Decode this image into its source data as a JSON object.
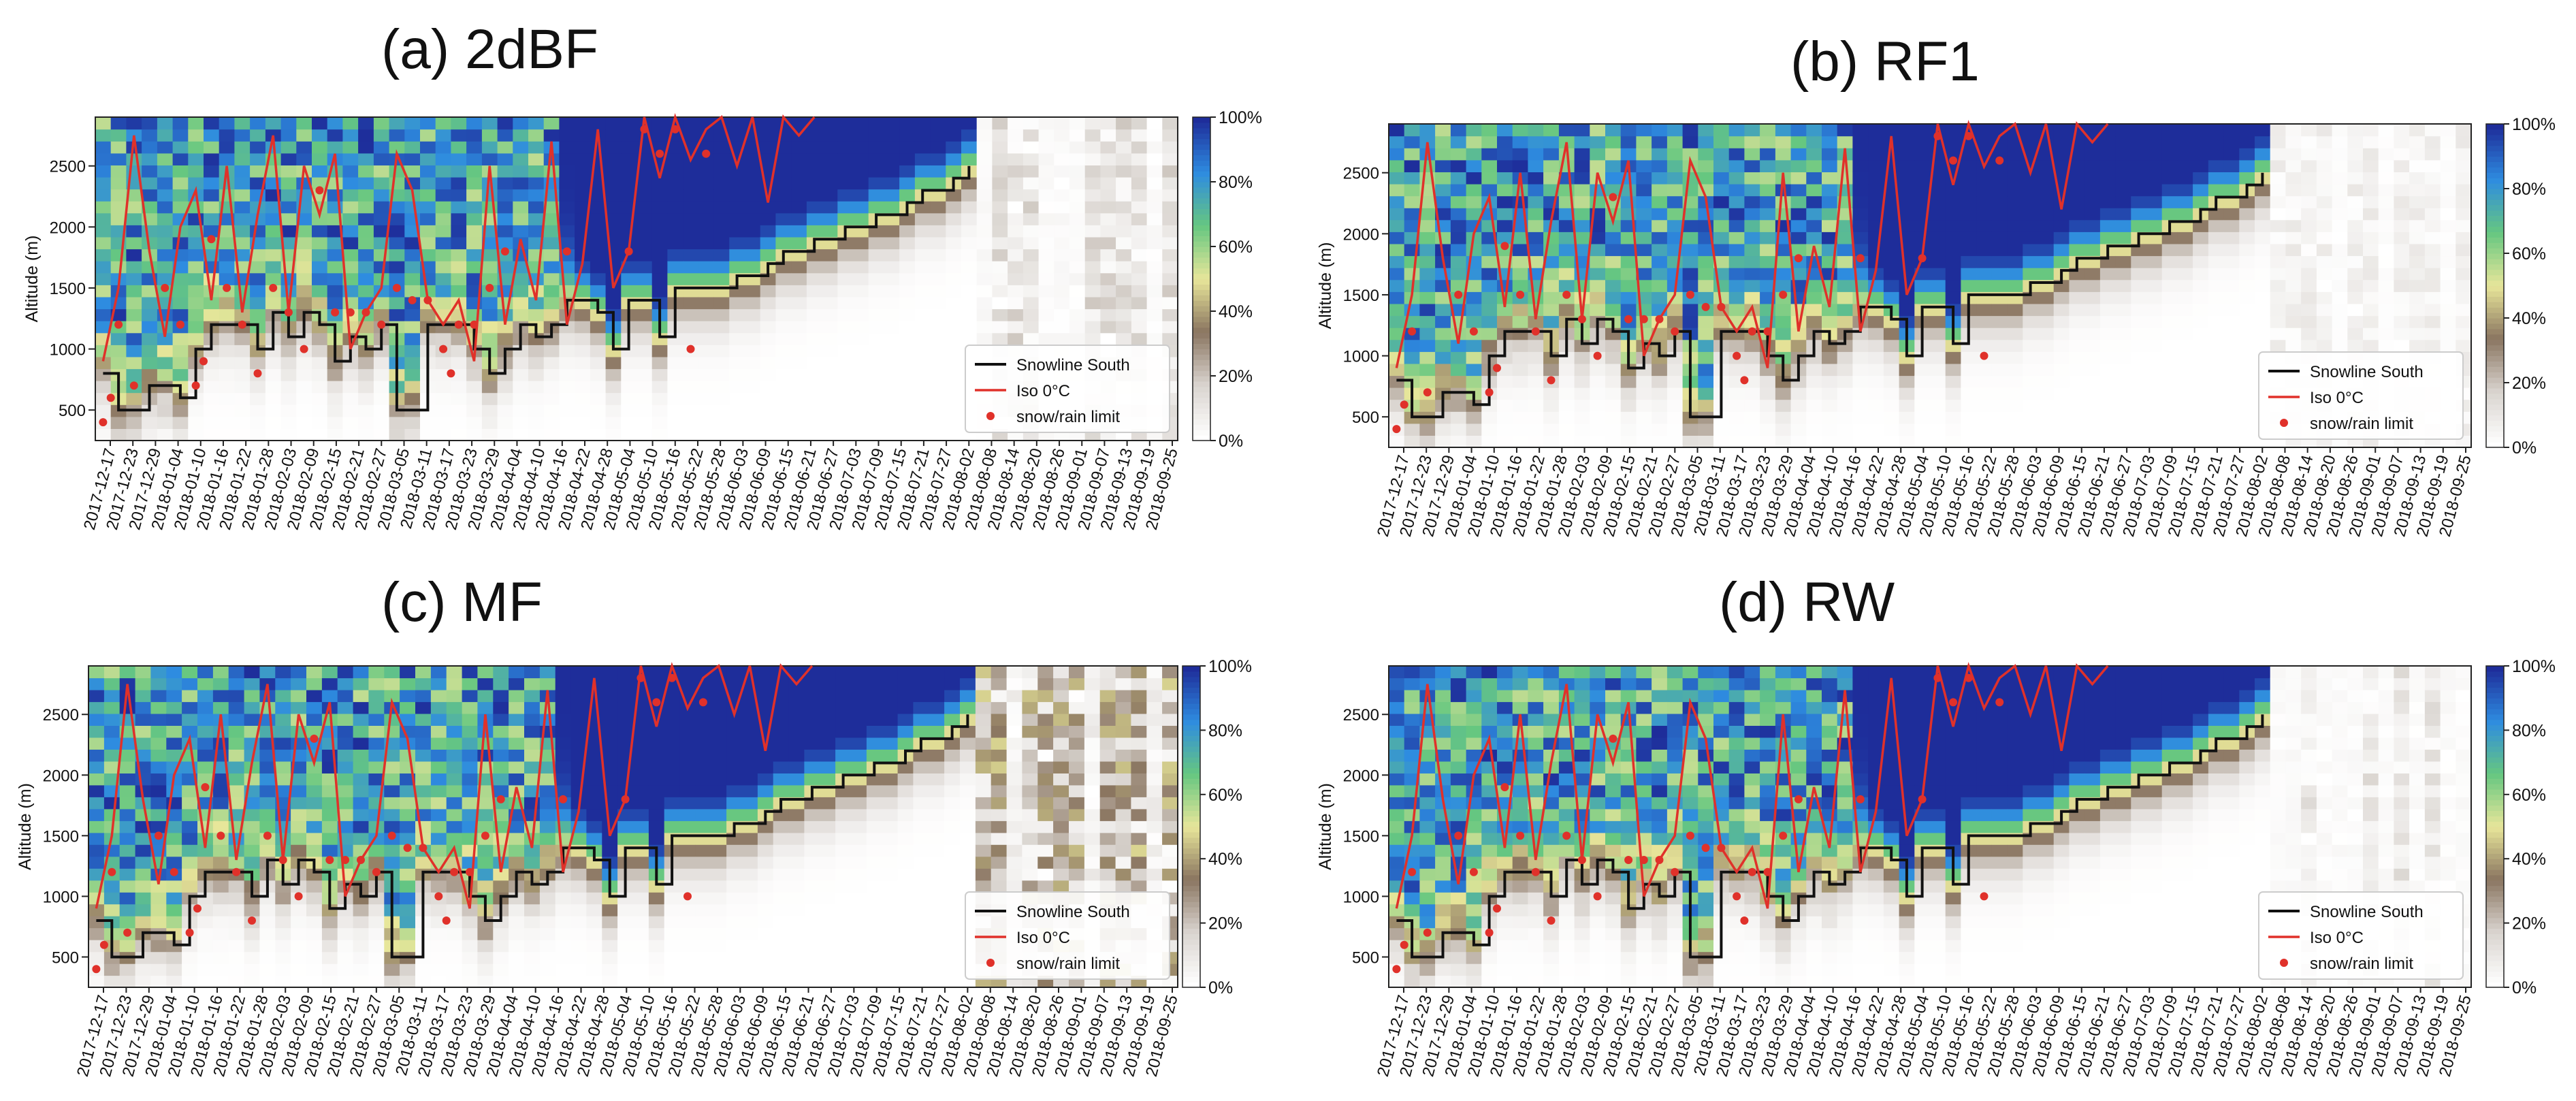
{
  "figure": {
    "colormap": [
      "#ffffff",
      "#d9d4cf",
      "#8a7560",
      "#e8e69a",
      "#66c780",
      "#2e8ce0",
      "#1e2d9a"
    ],
    "colors": {
      "snowline": "#111111",
      "iso": "#e0312a",
      "snowrain": "#e0312a"
    }
  },
  "chart_data": [
    {
      "type": "heatmap",
      "title": "(a)  2dBF",
      "ylabel": "Altitude (m)",
      "ylim": [
        250,
        2900
      ],
      "yticks": [
        500,
        1000,
        1500,
        2000,
        2500
      ],
      "xticks": [
        "2017-12-17",
        "2017-12-23",
        "2017-12-29",
        "2018-01-04",
        "2018-01-10",
        "2018-01-16",
        "2018-01-22",
        "2018-01-28",
        "2018-02-03",
        "2018-02-09",
        "2018-02-15",
        "2018-02-21",
        "2018-02-27",
        "2018-03-05",
        "2018-03-11",
        "2018-03-17",
        "2018-03-23",
        "2018-03-29",
        "2018-04-04",
        "2018-04-10",
        "2018-04-16",
        "2018-04-22",
        "2018-04-28",
        "2018-05-04",
        "2018-05-10",
        "2018-05-16",
        "2018-05-22",
        "2018-05-28",
        "2018-06-03",
        "2018-06-09",
        "2018-06-15",
        "2018-06-21",
        "2018-06-27",
        "2018-07-03",
        "2018-07-09",
        "2018-07-15",
        "2018-07-21",
        "2018-07-27",
        "2018-08-02",
        "2018-08-08",
        "2018-08-14",
        "2018-08-20",
        "2018-08-26",
        "2018-09-01",
        "2018-09-07",
        "2018-09-13",
        "2018-09-19",
        "2018-09-25"
      ],
      "colorbar": {
        "ticks": [
          "0%",
          "20%",
          "40%",
          "60%",
          "80%",
          "100%"
        ],
        "range": [
          0,
          100
        ]
      },
      "legend": {
        "position": "bottom-right",
        "entries": [
          "Snowline South",
          "Iso 0°C",
          "snow/rain limit"
        ]
      },
      "summer_background": 0.12
    },
    {
      "type": "heatmap",
      "title": "(b) RF1",
      "ylabel": "Altitude (m)",
      "ylim": [
        250,
        2900
      ],
      "yticks": [
        500,
        1000,
        1500,
        2000,
        2500
      ],
      "xticks": [
        "2017-12-17",
        "2017-12-23",
        "2017-12-29",
        "2018-01-04",
        "2018-01-10",
        "2018-01-16",
        "2018-01-22",
        "2018-01-28",
        "2018-02-03",
        "2018-02-09",
        "2018-02-15",
        "2018-02-21",
        "2018-02-27",
        "2018-03-05",
        "2018-03-11",
        "2018-03-17",
        "2018-03-23",
        "2018-03-29",
        "2018-04-04",
        "2018-04-10",
        "2018-04-16",
        "2018-04-22",
        "2018-04-28",
        "2018-05-04",
        "2018-05-10",
        "2018-05-16",
        "2018-05-22",
        "2018-05-28",
        "2018-06-03",
        "2018-06-09",
        "2018-06-15",
        "2018-06-21",
        "2018-06-27",
        "2018-07-03",
        "2018-07-09",
        "2018-07-15",
        "2018-07-21",
        "2018-07-27",
        "2018-08-02",
        "2018-08-08",
        "2018-08-14",
        "2018-08-20",
        "2018-08-26",
        "2018-09-01",
        "2018-09-07",
        "2018-09-13",
        "2018-09-19",
        "2018-09-25"
      ],
      "colorbar": {
        "ticks": [
          "0%",
          "20%",
          "40%",
          "60%",
          "80%",
          "100%"
        ],
        "range": [
          0,
          100
        ]
      },
      "legend": {
        "position": "bottom-right",
        "entries": [
          "Snowline South",
          "Iso 0°C",
          "snow/rain limit"
        ]
      },
      "summer_background": 0.06
    },
    {
      "type": "heatmap",
      "title": "(c)  MF",
      "ylabel": "Altitude (m)",
      "ylim": [
        250,
        2900
      ],
      "yticks": [
        500,
        1000,
        1500,
        2000,
        2500
      ],
      "xticks": [
        "2017-12-17",
        "2017-12-23",
        "2017-12-29",
        "2018-01-04",
        "2018-01-10",
        "2018-01-16",
        "2018-01-22",
        "2018-01-28",
        "2018-02-03",
        "2018-02-09",
        "2018-02-15",
        "2018-02-21",
        "2018-02-27",
        "2018-03-05",
        "2018-03-11",
        "2018-03-17",
        "2018-03-23",
        "2018-03-29",
        "2018-04-04",
        "2018-04-10",
        "2018-04-16",
        "2018-04-22",
        "2018-04-28",
        "2018-05-04",
        "2018-05-10",
        "2018-05-16",
        "2018-05-22",
        "2018-05-28",
        "2018-06-03",
        "2018-06-09",
        "2018-06-15",
        "2018-06-21",
        "2018-06-27",
        "2018-07-03",
        "2018-07-09",
        "2018-07-15",
        "2018-07-21",
        "2018-07-27",
        "2018-08-02",
        "2018-08-08",
        "2018-08-14",
        "2018-08-20",
        "2018-08-26",
        "2018-09-01",
        "2018-09-07",
        "2018-09-13",
        "2018-09-19",
        "2018-09-25"
      ],
      "colorbar": {
        "ticks": [
          "0%",
          "20%",
          "40%",
          "60%",
          "80%",
          "100%"
        ],
        "range": [
          0,
          100
        ]
      },
      "legend": {
        "position": "bottom-right",
        "entries": [
          "Snowline South",
          "Iso 0°C",
          "snow/rain limit"
        ]
      },
      "summer_background": 0.3
    },
    {
      "type": "heatmap",
      "title": "(d)  RW",
      "ylabel": "Altitude (m)",
      "ylim": [
        250,
        2900
      ],
      "yticks": [
        500,
        1000,
        1500,
        2000,
        2500
      ],
      "xticks": [
        "2017-12-17",
        "2017-12-23",
        "2017-12-29",
        "2018-01-04",
        "2018-01-10",
        "2018-01-16",
        "2018-01-22",
        "2018-01-28",
        "2018-02-03",
        "2018-02-09",
        "2018-02-15",
        "2018-02-21",
        "2018-02-27",
        "2018-03-05",
        "2018-03-11",
        "2018-03-17",
        "2018-03-23",
        "2018-03-29",
        "2018-04-04",
        "2018-04-10",
        "2018-04-16",
        "2018-04-22",
        "2018-04-28",
        "2018-05-04",
        "2018-05-10",
        "2018-05-16",
        "2018-05-22",
        "2018-05-28",
        "2018-06-03",
        "2018-06-09",
        "2018-06-15",
        "2018-06-21",
        "2018-06-27",
        "2018-07-03",
        "2018-07-09",
        "2018-07-15",
        "2018-07-21",
        "2018-07-27",
        "2018-08-02",
        "2018-08-08",
        "2018-08-14",
        "2018-08-20",
        "2018-08-26",
        "2018-09-01",
        "2018-09-07",
        "2018-09-13",
        "2018-09-19",
        "2018-09-25"
      ],
      "colorbar": {
        "ticks": [
          "0%",
          "20%",
          "40%",
          "60%",
          "80%",
          "100%"
        ],
        "range": [
          0,
          100
        ]
      },
      "legend": {
        "position": "bottom-right",
        "entries": [
          "Snowline South",
          "Iso 0°C",
          "snow/rain limit"
        ]
      },
      "summer_background": 0.1
    }
  ],
  "series": {
    "snowline_south": [
      [
        0,
        800
      ],
      [
        1,
        500
      ],
      [
        2,
        500
      ],
      [
        3,
        700
      ],
      [
        4,
        700
      ],
      [
        5,
        600
      ],
      [
        6,
        1000
      ],
      [
        7,
        1200
      ],
      [
        8,
        1200
      ],
      [
        9,
        1200
      ],
      [
        10,
        1000
      ],
      [
        11,
        1300
      ],
      [
        12,
        1100
      ],
      [
        13,
        1300
      ],
      [
        14,
        1200
      ],
      [
        15,
        900
      ],
      [
        16,
        1100
      ],
      [
        17,
        1000
      ],
      [
        18,
        1200
      ],
      [
        19,
        500
      ],
      [
        20,
        500
      ],
      [
        21,
        1200
      ],
      [
        22,
        1200
      ],
      [
        23,
        1200
      ],
      [
        24,
        1000
      ],
      [
        25,
        800
      ],
      [
        26,
        1000
      ],
      [
        27,
        1200
      ],
      [
        28,
        1100
      ],
      [
        29,
        1200
      ],
      [
        30,
        1400
      ],
      [
        31,
        1400
      ],
      [
        32,
        1300
      ],
      [
        33,
        1000
      ],
      [
        34,
        1400
      ],
      [
        35,
        1400
      ],
      [
        36,
        1100
      ],
      [
        37,
        1500
      ],
      [
        38,
        1500
      ],
      [
        39,
        1500
      ],
      [
        40,
        1500
      ],
      [
        41,
        1600
      ],
      [
        42,
        1600
      ],
      [
        43,
        1700
      ],
      [
        44,
        1800
      ],
      [
        45,
        1800
      ],
      [
        46,
        1900
      ],
      [
        47,
        1900
      ],
      [
        48,
        2000
      ],
      [
        49,
        2000
      ],
      [
        50,
        2100
      ],
      [
        51,
        2100
      ],
      [
        52,
        2200
      ],
      [
        53,
        2300
      ],
      [
        54,
        2300
      ],
      [
        55,
        2400
      ],
      [
        56,
        2500
      ]
    ],
    "iso_0c": [
      [
        0,
        900
      ],
      [
        1,
        1500
      ],
      [
        2,
        2750
      ],
      [
        3,
        1800
      ],
      [
        4,
        1100
      ],
      [
        5,
        2000
      ],
      [
        6,
        2300
      ],
      [
        7,
        1400
      ],
      [
        8,
        2500
      ],
      [
        9,
        1300
      ],
      [
        10,
        2100
      ],
      [
        11,
        2750
      ],
      [
        12,
        1300
      ],
      [
        13,
        2500
      ],
      [
        14,
        2100
      ],
      [
        15,
        2600
      ],
      [
        16,
        1000
      ],
      [
        17,
        1300
      ],
      [
        18,
        1500
      ],
      [
        19,
        2600
      ],
      [
        20,
        2300
      ],
      [
        21,
        1400
      ],
      [
        22,
        1200
      ],
      [
        23,
        1400
      ],
      [
        24,
        900
      ],
      [
        25,
        2500
      ],
      [
        26,
        1200
      ],
      [
        27,
        1900
      ],
      [
        28,
        1400
      ],
      [
        29,
        2700
      ],
      [
        30,
        1200
      ],
      [
        31,
        1700
      ],
      [
        32,
        2800
      ],
      [
        33,
        1500
      ],
      [
        34,
        1800
      ],
      [
        35,
        2900
      ],
      [
        36,
        2400
      ],
      [
        37,
        2900
      ],
      [
        38,
        2550
      ],
      [
        39,
        2800
      ],
      [
        40,
        2900
      ],
      [
        41,
        2500
      ],
      [
        42,
        2900
      ],
      [
        43,
        2200
      ],
      [
        44,
        2900
      ],
      [
        45,
        2750
      ],
      [
        46,
        2900
      ]
    ],
    "snow_rain_limit": [
      [
        0,
        400
      ],
      [
        0.5,
        600
      ],
      [
        1,
        1200
      ],
      [
        2,
        700
      ],
      [
        4,
        1500
      ],
      [
        5,
        1200
      ],
      [
        6,
        700
      ],
      [
        6.5,
        900
      ],
      [
        7,
        1900
      ],
      [
        8,
        1500
      ],
      [
        9,
        1200
      ],
      [
        10,
        800
      ],
      [
        11,
        1500
      ],
      [
        12,
        1300
      ],
      [
        13,
        1000
      ],
      [
        14,
        2300
      ],
      [
        15,
        1300
      ],
      [
        16,
        1300
      ],
      [
        17,
        1300
      ],
      [
        18,
        1200
      ],
      [
        19,
        1500
      ],
      [
        20,
        1400
      ],
      [
        21,
        1400
      ],
      [
        22,
        1000
      ],
      [
        22.5,
        800
      ],
      [
        23,
        1200
      ],
      [
        24,
        1200
      ],
      [
        25,
        1500
      ],
      [
        26,
        1800
      ],
      [
        30,
        1800
      ],
      [
        34,
        1800
      ],
      [
        35,
        2800
      ],
      [
        36,
        2600
      ],
      [
        37,
        2800
      ],
      [
        38,
        1000
      ],
      [
        39,
        2600
      ]
    ]
  }
}
